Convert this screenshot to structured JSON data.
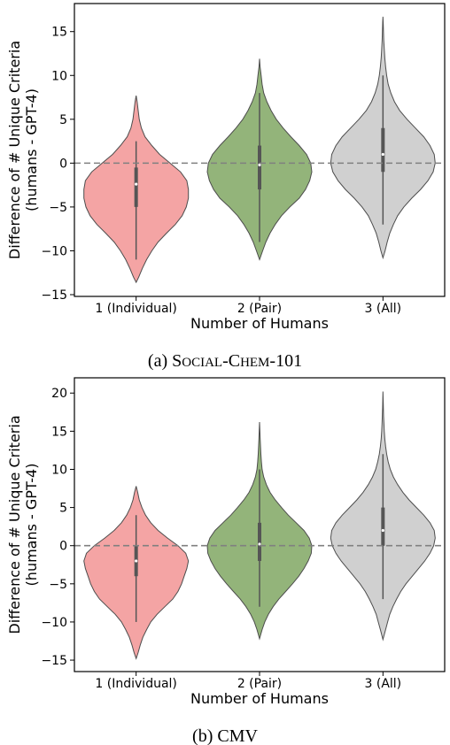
{
  "captions": [
    {
      "prefix": "(a) ",
      "parts": [
        {
          "text": "S",
          "big": true
        },
        {
          "text": "OCIAL",
          "big": false
        },
        {
          "text": "-C",
          "big": true
        },
        {
          "text": "HEM",
          "big": false
        },
        {
          "text": "-101",
          "big": true
        }
      ]
    },
    {
      "prefix": "(b) ",
      "parts": [
        {
          "text": "CMV",
          "big": true
        }
      ]
    }
  ],
  "colors": {
    "individual": "#f4a4a4",
    "pair": "#93b47a",
    "all": "#d0d0d0",
    "outline": "#4d4d4d",
    "zero_line": "#808080"
  },
  "chart_data": [
    {
      "type": "violin",
      "xlabel": "Number of Humans",
      "ylabel_lines": [
        "Difference of # Unique Criteria",
        "(humans - GPT-4)"
      ],
      "categories": [
        "1 (Individual)",
        "2 (Pair)",
        "3 (All)"
      ],
      "yticks": [
        -15,
        -10,
        -5,
        0,
        5,
        10,
        15
      ],
      "ylim": [
        -15.2,
        18.2
      ],
      "reference_line": 0,
      "grid": false,
      "violins": [
        {
          "min": -13.6,
          "max": 7.7,
          "q1": -5.0,
          "median": -2.4,
          "q3": -0.5,
          "whisker_lo": -11.0,
          "whisker_hi": 2.5,
          "profile": [
            [
              -13.6,
              0.0
            ],
            [
              -13.0,
              0.05
            ],
            [
              -12.0,
              0.12
            ],
            [
              -11.0,
              0.2
            ],
            [
              -10.0,
              0.3
            ],
            [
              -9.0,
              0.42
            ],
            [
              -8.0,
              0.58
            ],
            [
              -7.0,
              0.75
            ],
            [
              -6.0,
              0.88
            ],
            [
              -5.0,
              0.96
            ],
            [
              -4.0,
              1.0
            ],
            [
              -3.0,
              1.0
            ],
            [
              -2.0,
              0.97
            ],
            [
              -1.0,
              0.85
            ],
            [
              0.0,
              0.65
            ],
            [
              1.0,
              0.45
            ],
            [
              2.0,
              0.3
            ],
            [
              3.0,
              0.17
            ],
            [
              4.0,
              0.1
            ],
            [
              5.0,
              0.06
            ],
            [
              6.0,
              0.04
            ],
            [
              7.0,
              0.02
            ],
            [
              7.7,
              0.0
            ]
          ]
        },
        {
          "min": -11.0,
          "max": 11.9,
          "q1": -3.0,
          "median": -0.2,
          "q3": 2.0,
          "whisker_lo": -9.0,
          "whisker_hi": 8.0,
          "profile": [
            [
              -11.0,
              0.0
            ],
            [
              -10.0,
              0.06
            ],
            [
              -9.0,
              0.12
            ],
            [
              -8.0,
              0.2
            ],
            [
              -7.0,
              0.3
            ],
            [
              -6.0,
              0.42
            ],
            [
              -5.0,
              0.58
            ],
            [
              -4.0,
              0.76
            ],
            [
              -3.0,
              0.88
            ],
            [
              -2.0,
              0.96
            ],
            [
              -1.0,
              1.0
            ],
            [
              0.0,
              0.98
            ],
            [
              1.0,
              0.9
            ],
            [
              2.0,
              0.76
            ],
            [
              3.0,
              0.6
            ],
            [
              4.0,
              0.45
            ],
            [
              5.0,
              0.32
            ],
            [
              6.0,
              0.22
            ],
            [
              7.0,
              0.14
            ],
            [
              8.0,
              0.08
            ],
            [
              9.0,
              0.05
            ],
            [
              10.0,
              0.03
            ],
            [
              11.0,
              0.01
            ],
            [
              11.9,
              0.0
            ]
          ]
        },
        {
          "min": -10.8,
          "max": 16.7,
          "q1": -1.0,
          "median": 1.0,
          "q3": 4.0,
          "whisker_lo": -7.0,
          "whisker_hi": 10.0,
          "profile": [
            [
              -10.8,
              0.0
            ],
            [
              -10.0,
              0.04
            ],
            [
              -9.0,
              0.08
            ],
            [
              -8.0,
              0.13
            ],
            [
              -7.0,
              0.2
            ],
            [
              -6.0,
              0.28
            ],
            [
              -5.0,
              0.4
            ],
            [
              -4.0,
              0.55
            ],
            [
              -3.0,
              0.72
            ],
            [
              -2.0,
              0.86
            ],
            [
              -1.0,
              0.96
            ],
            [
              0.0,
              1.0
            ],
            [
              1.0,
              0.98
            ],
            [
              2.0,
              0.9
            ],
            [
              3.0,
              0.78
            ],
            [
              4.0,
              0.62
            ],
            [
              5.0,
              0.46
            ],
            [
              6.0,
              0.32
            ],
            [
              7.0,
              0.22
            ],
            [
              8.0,
              0.15
            ],
            [
              9.0,
              0.1
            ],
            [
              10.0,
              0.07
            ],
            [
              11.0,
              0.05
            ],
            [
              12.0,
              0.035
            ],
            [
              13.0,
              0.025
            ],
            [
              14.0,
              0.015
            ],
            [
              15.0,
              0.01
            ],
            [
              16.0,
              0.005
            ],
            [
              16.7,
              0.0
            ]
          ]
        }
      ]
    },
    {
      "type": "violin",
      "xlabel": "Number of Humans",
      "ylabel_lines": [
        "Difference of # Unique Criteria",
        "(humans - GPT-4)"
      ],
      "categories": [
        "1 (Individual)",
        "2 (Pair)",
        "3 (All)"
      ],
      "yticks": [
        -15,
        -10,
        -5,
        0,
        5,
        10,
        15,
        20
      ],
      "ylim": [
        -16.5,
        22.0
      ],
      "reference_line": 0,
      "grid": false,
      "violins": [
        {
          "min": -14.8,
          "max": 7.8,
          "q1": -4.0,
          "median": -2.0,
          "q3": 0.0,
          "whisker_lo": -10.0,
          "whisker_hi": 4.0,
          "profile": [
            [
              -14.8,
              0.0
            ],
            [
              -14.0,
              0.04
            ],
            [
              -13.0,
              0.08
            ],
            [
              -12.0,
              0.13
            ],
            [
              -11.0,
              0.2
            ],
            [
              -10.0,
              0.28
            ],
            [
              -9.0,
              0.4
            ],
            [
              -8.0,
              0.55
            ],
            [
              -7.0,
              0.7
            ],
            [
              -6.0,
              0.8
            ],
            [
              -5.0,
              0.87
            ],
            [
              -4.0,
              0.92
            ],
            [
              -3.0,
              0.97
            ],
            [
              -2.0,
              1.0
            ],
            [
              -1.0,
              0.95
            ],
            [
              0.0,
              0.8
            ],
            [
              1.0,
              0.6
            ],
            [
              2.0,
              0.42
            ],
            [
              3.0,
              0.28
            ],
            [
              4.0,
              0.18
            ],
            [
              5.0,
              0.11
            ],
            [
              6.0,
              0.06
            ],
            [
              7.0,
              0.03
            ],
            [
              7.8,
              0.0
            ]
          ]
        },
        {
          "min": -12.2,
          "max": 16.2,
          "q1": -2.0,
          "median": 0.2,
          "q3": 3.0,
          "whisker_lo": -8.0,
          "whisker_hi": 10.0,
          "profile": [
            [
              -12.2,
              0.0
            ],
            [
              -11.0,
              0.05
            ],
            [
              -10.0,
              0.1
            ],
            [
              -9.0,
              0.17
            ],
            [
              -8.0,
              0.26
            ],
            [
              -7.0,
              0.37
            ],
            [
              -6.0,
              0.5
            ],
            [
              -5.0,
              0.63
            ],
            [
              -4.0,
              0.75
            ],
            [
              -3.0,
              0.85
            ],
            [
              -2.0,
              0.93
            ],
            [
              -1.0,
              0.99
            ],
            [
              0.0,
              1.0
            ],
            [
              1.0,
              0.95
            ],
            [
              2.0,
              0.85
            ],
            [
              3.0,
              0.7
            ],
            [
              4.0,
              0.55
            ],
            [
              5.0,
              0.42
            ],
            [
              6.0,
              0.3
            ],
            [
              7.0,
              0.2
            ],
            [
              8.0,
              0.13
            ],
            [
              9.0,
              0.08
            ],
            [
              10.0,
              0.05
            ],
            [
              11.0,
              0.035
            ],
            [
              12.0,
              0.025
            ],
            [
              13.0,
              0.018
            ],
            [
              14.0,
              0.012
            ],
            [
              15.0,
              0.006
            ],
            [
              16.2,
              0.0
            ]
          ]
        },
        {
          "min": -12.3,
          "max": 20.2,
          "q1": 0.0,
          "median": 2.0,
          "q3": 5.0,
          "whisker_lo": -7.0,
          "whisker_hi": 12.0,
          "profile": [
            [
              -12.3,
              0.0
            ],
            [
              -11.0,
              0.05
            ],
            [
              -10.0,
              0.09
            ],
            [
              -9.0,
              0.13
            ],
            [
              -8.0,
              0.19
            ],
            [
              -7.0,
              0.26
            ],
            [
              -6.0,
              0.34
            ],
            [
              -5.0,
              0.44
            ],
            [
              -4.0,
              0.56
            ],
            [
              -3.0,
              0.68
            ],
            [
              -2.0,
              0.8
            ],
            [
              -1.0,
              0.9
            ],
            [
              0.0,
              0.97
            ],
            [
              1.0,
              1.0
            ],
            [
              2.0,
              0.98
            ],
            [
              3.0,
              0.9
            ],
            [
              4.0,
              0.78
            ],
            [
              5.0,
              0.64
            ],
            [
              6.0,
              0.5
            ],
            [
              7.0,
              0.38
            ],
            [
              8.0,
              0.28
            ],
            [
              9.0,
              0.2
            ],
            [
              10.0,
              0.14
            ],
            [
              11.0,
              0.1
            ],
            [
              12.0,
              0.07
            ],
            [
              13.0,
              0.05
            ],
            [
              14.0,
              0.035
            ],
            [
              15.0,
              0.025
            ],
            [
              16.0,
              0.018
            ],
            [
              17.0,
              0.012
            ],
            [
              18.0,
              0.008
            ],
            [
              19.0,
              0.004
            ],
            [
              20.2,
              0.0
            ]
          ]
        }
      ]
    }
  ]
}
